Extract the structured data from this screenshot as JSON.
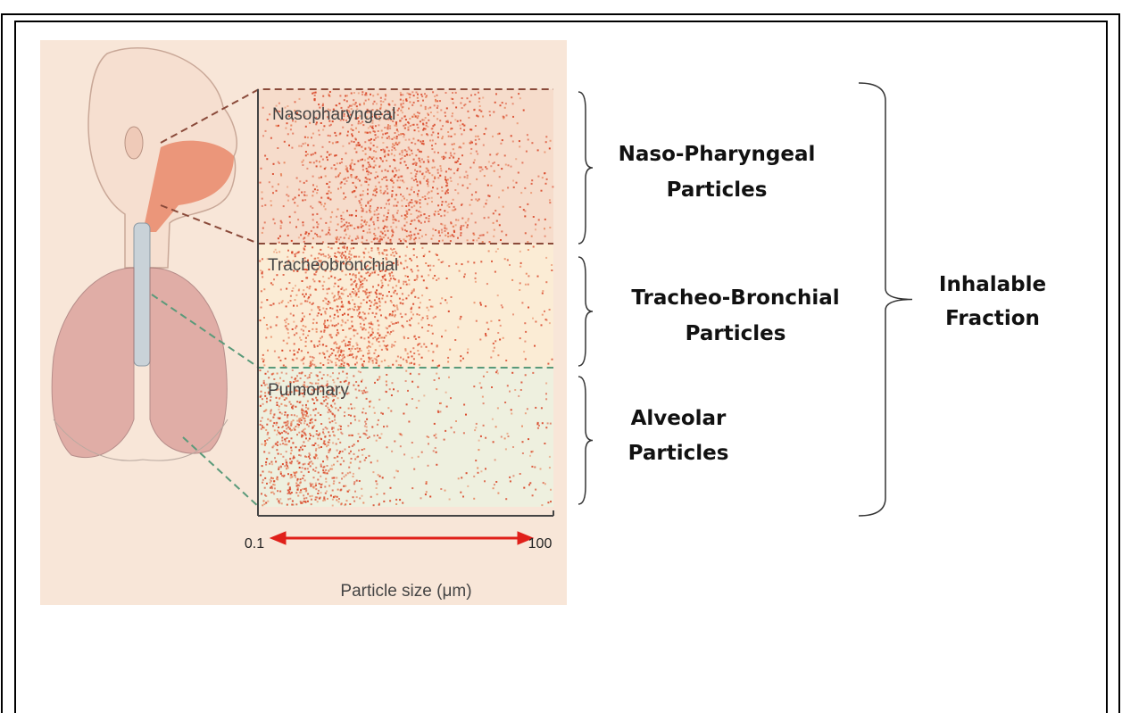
{
  "regions": [
    {
      "label": "Nasopharyngeal",
      "description": [
        "Naso-Pharyngeal",
        "Particles"
      ]
    },
    {
      "label": "Tracheobronchial",
      "description": [
        "Tracheo-Bronchial",
        "Particles"
      ]
    },
    {
      "label": "Pulmonary",
      "description": [
        "Alveolar",
        "Particles"
      ]
    }
  ],
  "group": [
    "Inhalable",
    "Fraction"
  ],
  "axis": {
    "min_label": "0.1",
    "max_label": "100",
    "title": "Particle size (μm)"
  }
}
